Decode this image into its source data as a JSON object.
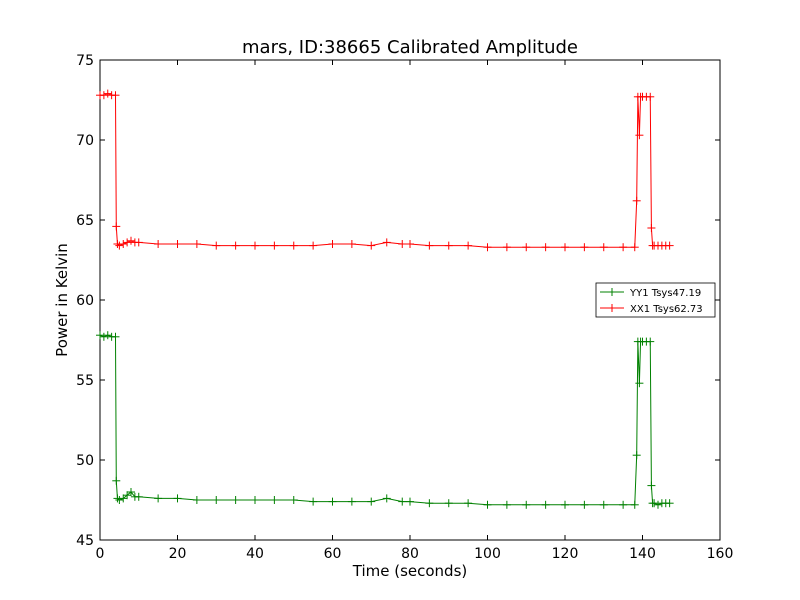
{
  "chart_data": {
    "type": "line",
    "title": "mars, ID:38665 Calibrated Amplitude",
    "xlabel": "Time (seconds)",
    "ylabel": "Power in Kelvin",
    "xlim": [
      0,
      160
    ],
    "ylim": [
      45,
      75
    ],
    "xticks": [
      0,
      20,
      40,
      60,
      80,
      100,
      120,
      140,
      160
    ],
    "yticks": [
      45,
      50,
      55,
      60,
      65,
      70,
      75
    ],
    "grid": false,
    "legend_position": "right",
    "series": [
      {
        "name": "YY1 Tsys47.19",
        "color": "#008000",
        "marker": "+",
        "points": [
          [
            0,
            57.8
          ],
          [
            1,
            57.7
          ],
          [
            2,
            57.8
          ],
          [
            3,
            57.7
          ],
          [
            4,
            57.7
          ],
          [
            4.2,
            48.7
          ],
          [
            4.5,
            47.6
          ],
          [
            5,
            47.5
          ],
          [
            6,
            47.6
          ],
          [
            7,
            47.8
          ],
          [
            8,
            48.0
          ],
          [
            9,
            47.7
          ],
          [
            10,
            47.7
          ],
          [
            15,
            47.6
          ],
          [
            20,
            47.6
          ],
          [
            25,
            47.5
          ],
          [
            30,
            47.5
          ],
          [
            35,
            47.5
          ],
          [
            40,
            47.5
          ],
          [
            45,
            47.5
          ],
          [
            50,
            47.5
          ],
          [
            55,
            47.4
          ],
          [
            60,
            47.4
          ],
          [
            65,
            47.4
          ],
          [
            70,
            47.4
          ],
          [
            74,
            47.6
          ],
          [
            78,
            47.4
          ],
          [
            80,
            47.4
          ],
          [
            85,
            47.3
          ],
          [
            90,
            47.3
          ],
          [
            95,
            47.3
          ],
          [
            100,
            47.2
          ],
          [
            105,
            47.2
          ],
          [
            110,
            47.2
          ],
          [
            115,
            47.2
          ],
          [
            120,
            47.2
          ],
          [
            125,
            47.2
          ],
          [
            130,
            47.2
          ],
          [
            135,
            47.2
          ],
          [
            138,
            47.2
          ],
          [
            138.5,
            50.3
          ],
          [
            138.8,
            57.4
          ],
          [
            139.2,
            54.8
          ],
          [
            139.5,
            57.4
          ],
          [
            140,
            57.4
          ],
          [
            141,
            57.4
          ],
          [
            142,
            57.4
          ],
          [
            142.3,
            48.4
          ],
          [
            142.6,
            47.3
          ],
          [
            143,
            47.3
          ],
          [
            144,
            47.2
          ],
          [
            145,
            47.3
          ],
          [
            146,
            47.3
          ],
          [
            147,
            47.3
          ]
        ]
      },
      {
        "name": "XX1 Tsys62.73",
        "color": "#ff0000",
        "marker": "+",
        "points": [
          [
            0,
            72.8
          ],
          [
            1,
            72.8
          ],
          [
            2,
            72.9
          ],
          [
            3,
            72.8
          ],
          [
            4,
            72.8
          ],
          [
            4.2,
            64.6
          ],
          [
            4.5,
            63.5
          ],
          [
            5,
            63.4
          ],
          [
            6,
            63.5
          ],
          [
            7,
            63.6
          ],
          [
            8,
            63.7
          ],
          [
            9,
            63.6
          ],
          [
            10,
            63.6
          ],
          [
            15,
            63.5
          ],
          [
            20,
            63.5
          ],
          [
            25,
            63.5
          ],
          [
            30,
            63.4
          ],
          [
            35,
            63.4
          ],
          [
            40,
            63.4
          ],
          [
            45,
            63.4
          ],
          [
            50,
            63.4
          ],
          [
            55,
            63.4
          ],
          [
            60,
            63.5
          ],
          [
            65,
            63.5
          ],
          [
            70,
            63.4
          ],
          [
            74,
            63.6
          ],
          [
            78,
            63.5
          ],
          [
            80,
            63.5
          ],
          [
            85,
            63.4
          ],
          [
            90,
            63.4
          ],
          [
            95,
            63.4
          ],
          [
            100,
            63.3
          ],
          [
            105,
            63.3
          ],
          [
            110,
            63.3
          ],
          [
            115,
            63.3
          ],
          [
            120,
            63.3
          ],
          [
            125,
            63.3
          ],
          [
            130,
            63.3
          ],
          [
            135,
            63.3
          ],
          [
            138,
            63.3
          ],
          [
            138.5,
            66.2
          ],
          [
            138.8,
            72.7
          ],
          [
            139.2,
            70.3
          ],
          [
            139.5,
            72.7
          ],
          [
            140,
            72.7
          ],
          [
            141,
            72.7
          ],
          [
            142,
            72.7
          ],
          [
            142.3,
            64.5
          ],
          [
            142.6,
            63.4
          ],
          [
            143,
            63.4
          ],
          [
            144,
            63.4
          ],
          [
            145,
            63.4
          ],
          [
            146,
            63.4
          ],
          [
            147,
            63.4
          ]
        ]
      }
    ]
  }
}
